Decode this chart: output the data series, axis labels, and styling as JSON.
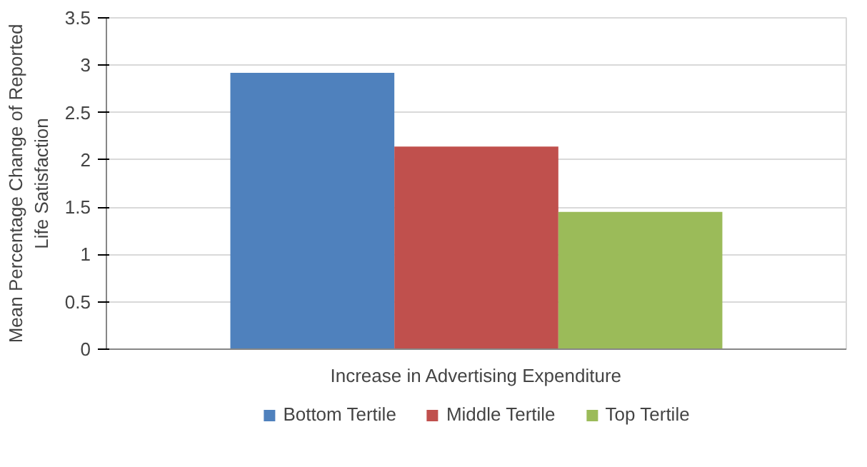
{
  "chart_data": {
    "type": "bar",
    "ylabel": "Mean Percentage Change of Reported Life Satisfaction",
    "categories": [
      "Increase in Advertising Expenditure"
    ],
    "series": [
      {
        "name": "Bottom Tertile",
        "color": "#4f81bd",
        "values": [
          2.92
        ]
      },
      {
        "name": "Middle Tertile",
        "color": "#c0504d",
        "values": [
          2.14
        ]
      },
      {
        "name": "Top Tertile",
        "color": "#9bbb59",
        "values": [
          1.45
        ]
      }
    ],
    "ylim": [
      0,
      3.5
    ],
    "yticks": [
      0,
      0.5,
      1,
      1.5,
      2,
      2.5,
      3,
      3.5
    ],
    "grid": "y",
    "legend": "bottom"
  }
}
